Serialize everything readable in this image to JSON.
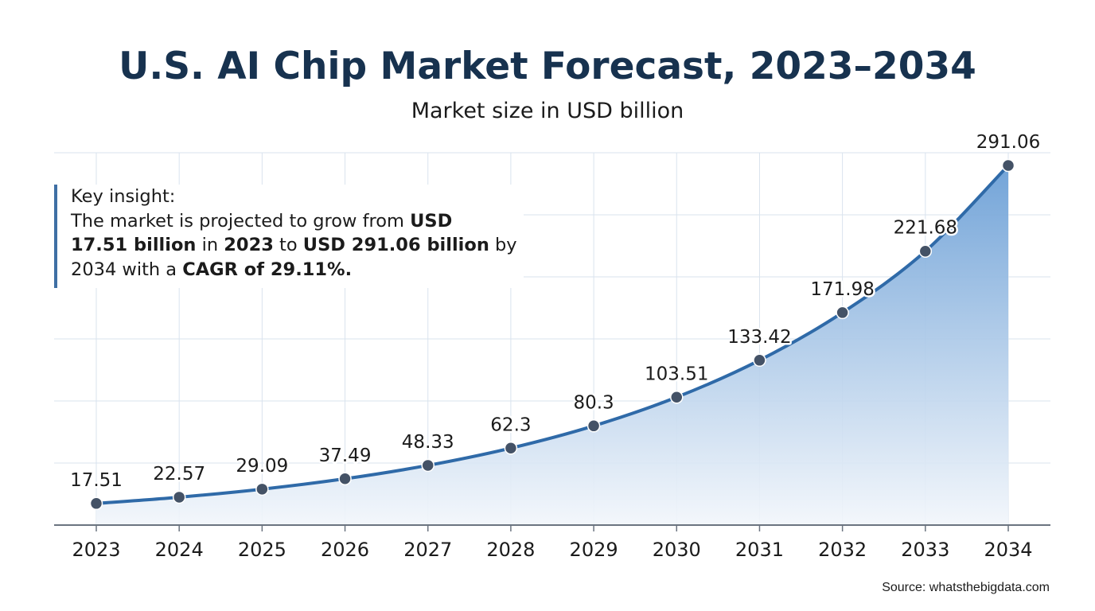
{
  "chart_data": {
    "type": "area",
    "title": "U.S. AI Chip Market Forecast, 2023–2034",
    "subtitle": "Market size in USD billion",
    "categories": [
      "2023",
      "2024",
      "2025",
      "2026",
      "2027",
      "2028",
      "2029",
      "2030",
      "2031",
      "2032",
      "2033",
      "2034"
    ],
    "series": [
      {
        "name": "Market size",
        "values": [
          17.51,
          22.57,
          29.09,
          37.49,
          48.33,
          62.3,
          80.3,
          103.51,
          133.42,
          171.98,
          221.68,
          291.06
        ],
        "labels": [
          "17.51",
          "22.57",
          "29.09",
          "37.49",
          "48.33",
          "62.3",
          "80.3",
          "103.51",
          "133.42",
          "171.98",
          "221.68",
          "291.06"
        ]
      }
    ],
    "xlabel": "",
    "ylabel": "",
    "ylim": [
      0,
      300
    ],
    "grid": true,
    "legend": "none",
    "source": "Source: whatsthebigdata.com",
    "insight": {
      "heading": "Key insight:",
      "line1_pre": "The market is projected to grow from ",
      "line1_bold": "USD",
      "line2_bold_a": "17.51 billion",
      "line2_mid_a": " in ",
      "line2_bold_b": "2023",
      "line2_mid_b": " to ",
      "line2_bold_c": "USD 291.06 billion",
      "line2_post": " by",
      "line3_pre": "2034 with a ",
      "line3_bold": "CAGR of 29.11%."
    },
    "colors": {
      "title": "#17324f",
      "line": "#2f6aa8",
      "marker": "#445266",
      "area_top": "#6b9fd6",
      "area_bottom": "#f2f6fb",
      "grid": "#d9e3ee",
      "axis": "#6b7480",
      "insight_bar": "#3f6fa4"
    }
  }
}
